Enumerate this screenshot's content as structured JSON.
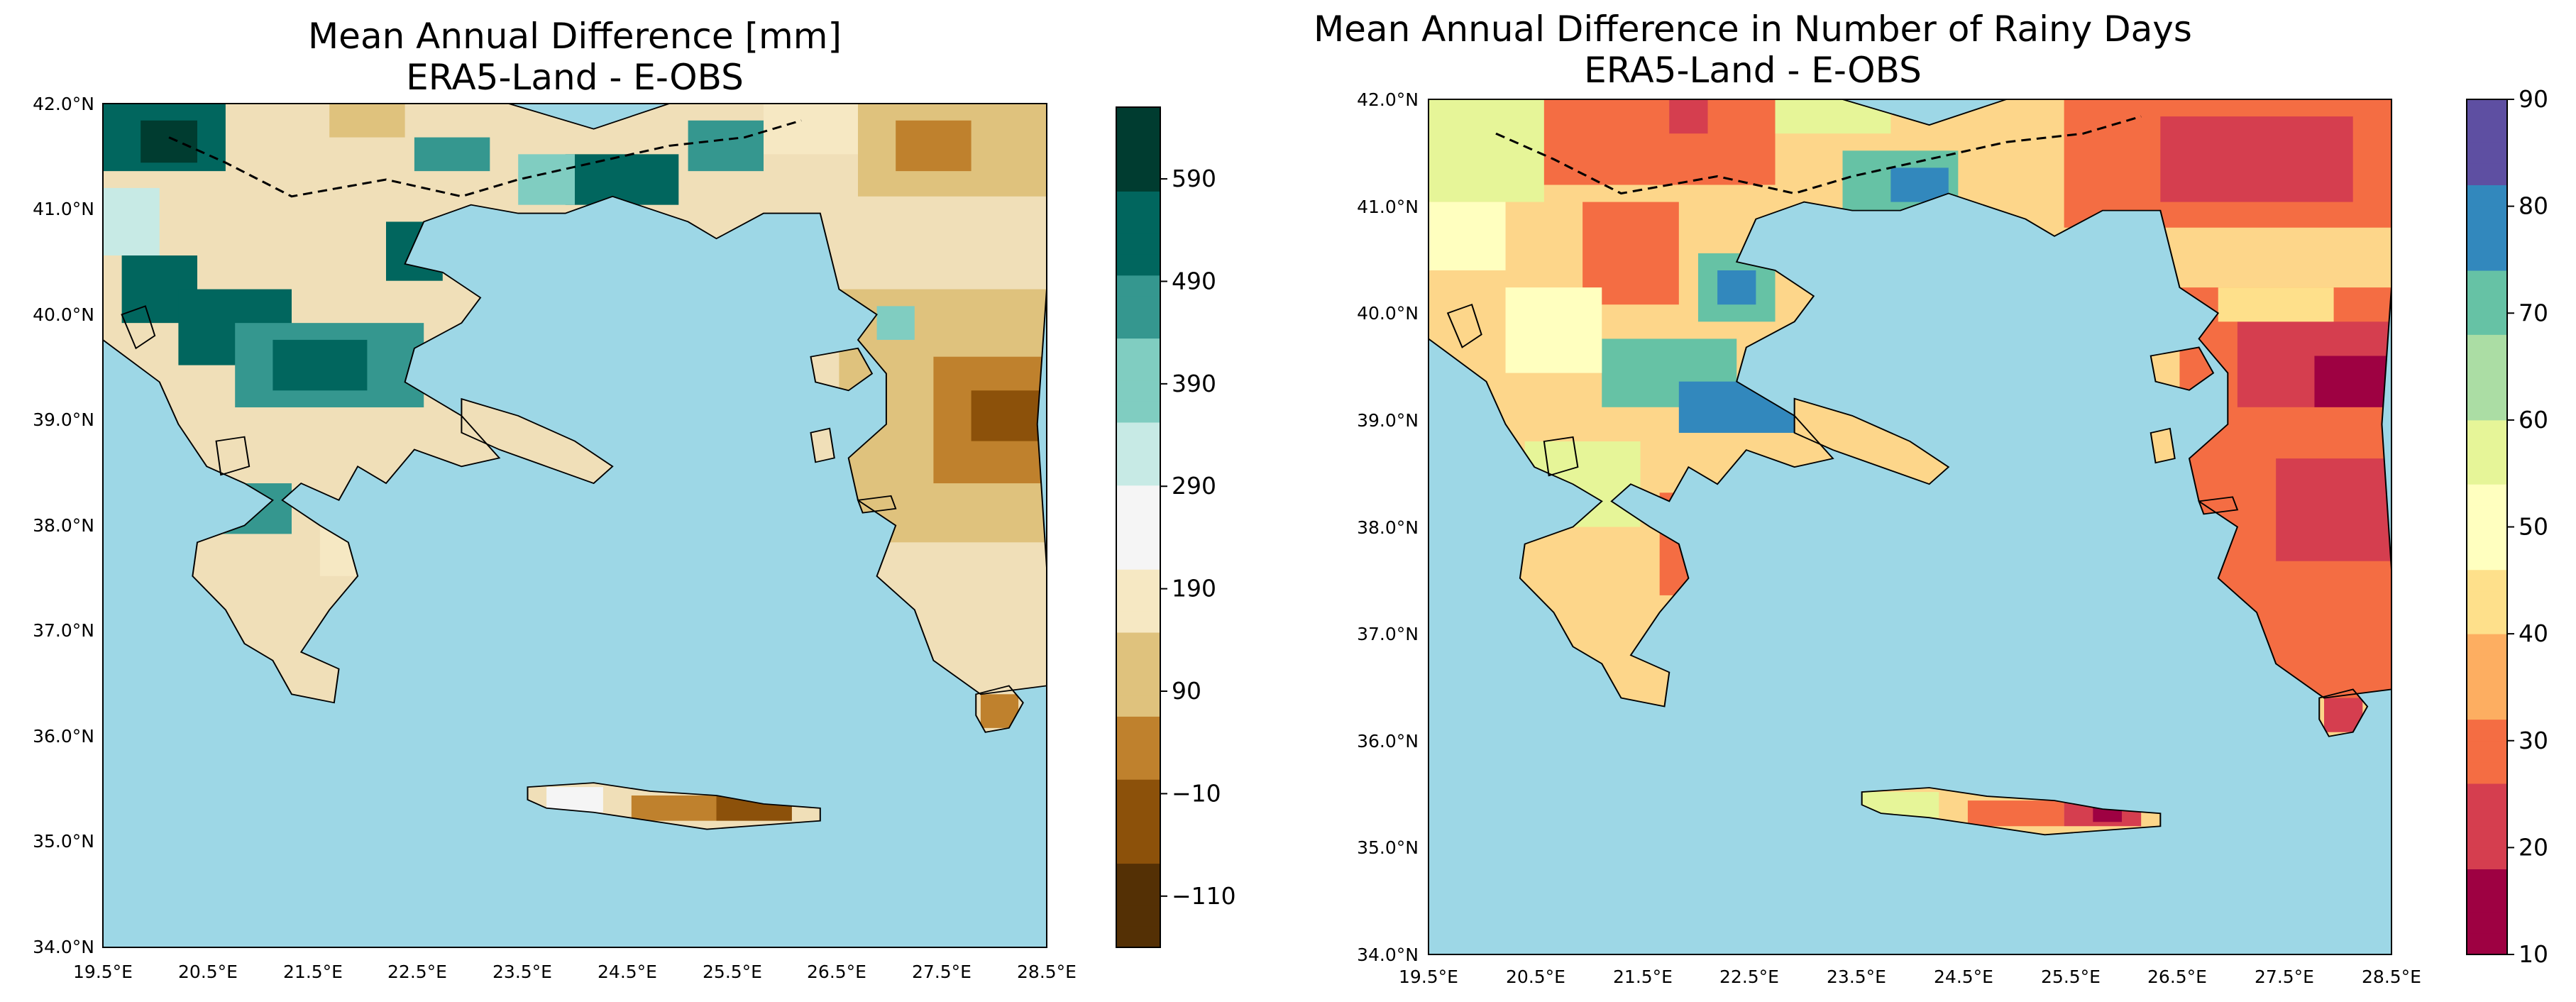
{
  "left_panel": {
    "title_line1": "Mean Annual Difference [mm]",
    "title_line2": "ERA5-Land - E-OBS",
    "y_ticks": [
      "42.0°N",
      "41.0°N",
      "40.0°N",
      "39.0°N",
      "38.0°N",
      "37.0°N",
      "36.0°N",
      "35.0°N",
      "34.0°N"
    ],
    "x_ticks": [
      "19.5°E",
      "20.5°E",
      "21.5°E",
      "22.5°E",
      "23.5°E",
      "24.5°E",
      "25.5°E",
      "26.5°E",
      "27.5°E",
      "28.5°E"
    ],
    "colorbar": {
      "labels": [
        "590",
        "490",
        "390",
        "290",
        "190",
        "90",
        "−10",
        "−110"
      ],
      "values": [
        590,
        490,
        390,
        290,
        190,
        90,
        -10,
        -110
      ],
      "range": [
        -160,
        660
      ],
      "colormap": "BrBG",
      "colors": [
        "#543005",
        "#8c510a",
        "#bf812d",
        "#dfc27d",
        "#f6e8c3",
        "#f5f5f5",
        "#c7eae5",
        "#80cdc1",
        "#35978f",
        "#01665e",
        "#003c30"
      ]
    }
  },
  "right_panel": {
    "title_line1": "Mean Annual Difference in Number of Rainy Days",
    "title_line2": "ERA5-Land - E-OBS",
    "y_ticks": [
      "42.0°N",
      "41.0°N",
      "40.0°N",
      "39.0°N",
      "38.0°N",
      "37.0°N",
      "36.0°N",
      "35.0°N",
      "34.0°N"
    ],
    "x_ticks": [
      "19.5°E",
      "20.5°E",
      "21.5°E",
      "22.5°E",
      "23.5°E",
      "24.5°E",
      "25.5°E",
      "26.5°E",
      "27.5°E",
      "28.5°E"
    ],
    "colorbar": {
      "labels": [
        "90",
        "80",
        "70",
        "60",
        "50",
        "40",
        "30",
        "20",
        "10"
      ],
      "values": [
        90,
        80,
        70,
        60,
        50,
        40,
        30,
        20,
        10
      ],
      "range": [
        10,
        90
      ],
      "colormap": "Spectral",
      "colors": [
        "#9e0142",
        "#d53e4f",
        "#f46d43",
        "#fdae61",
        "#fee08b",
        "#ffffbf",
        "#e6f598",
        "#abdda4",
        "#66c2a5",
        "#3288bd",
        "#5e4fa2"
      ]
    }
  },
  "colors": {
    "sea": "#9dd7e6",
    "no_data": "#c9c9c9",
    "coast": "#000000"
  }
}
